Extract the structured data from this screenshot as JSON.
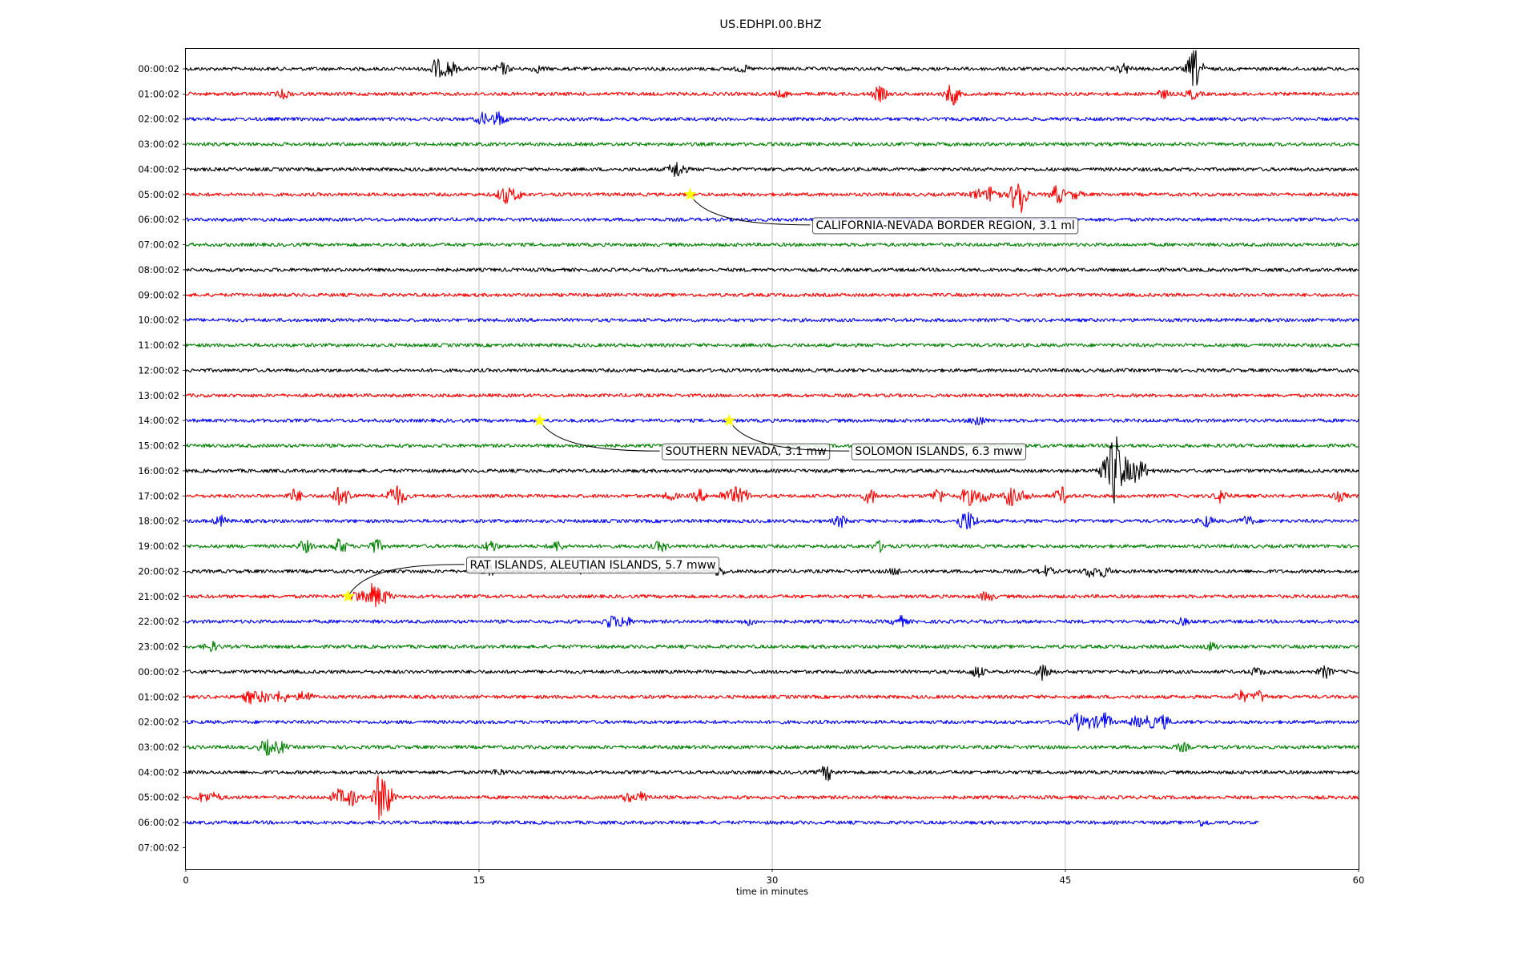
{
  "chart_data": {
    "type": "line",
    "title": "US.EDHPI.00.BHZ",
    "xlabel": "time in minutes",
    "ylabel": "",
    "xlim": [
      0,
      60
    ],
    "xticks": [
      0,
      15,
      30,
      45,
      60
    ],
    "xgrid": true,
    "trace_colors": [
      "#000000",
      "#ff0000",
      "#0000ff",
      "#008000"
    ],
    "row_labels": [
      "00:00:02",
      "01:00:02",
      "02:00:02",
      "03:00:02",
      "04:00:02",
      "05:00:02",
      "06:00:02",
      "07:00:02",
      "08:00:02",
      "09:00:02",
      "10:00:02",
      "11:00:02",
      "12:00:02",
      "13:00:02",
      "14:00:02",
      "15:00:02",
      "16:00:02",
      "17:00:02",
      "18:00:02",
      "19:00:02",
      "20:00:02",
      "21:00:02",
      "22:00:02",
      "23:00:02",
      "00:00:02",
      "01:00:02",
      "02:00:02",
      "03:00:02",
      "04:00:02",
      "05:00:02",
      "06:00:02",
      "07:00:02"
    ],
    "series": [
      {
        "row": 0,
        "color": "#000000",
        "start": 0,
        "end": 60,
        "bursts": [
          [
            12.8,
            1.0
          ],
          [
            13.5,
            0.9
          ],
          [
            16.2,
            0.6
          ],
          [
            18.0,
            0.3
          ],
          [
            28.5,
            0.3
          ],
          [
            48.0,
            0.5
          ],
          [
            51.5,
            1.0
          ],
          [
            51.7,
            1.3
          ]
        ]
      },
      {
        "row": 1,
        "color": "#ff0000",
        "start": 0,
        "end": 60,
        "bursts": [
          [
            5.0,
            0.4
          ],
          [
            30.5,
            0.3
          ],
          [
            35.5,
            0.8
          ],
          [
            39.2,
            1.2
          ],
          [
            50.0,
            0.4
          ],
          [
            51.5,
            0.5
          ]
        ]
      },
      {
        "row": 2,
        "color": "#0000ff",
        "start": 0,
        "end": 60,
        "bursts": [
          [
            15.2,
            0.6
          ],
          [
            16.0,
            0.8
          ]
        ]
      },
      {
        "row": 3,
        "color": "#008000",
        "start": 0,
        "end": 60,
        "bursts": []
      },
      {
        "row": 4,
        "color": "#000000",
        "start": 0,
        "end": 60,
        "bursts": [
          [
            25.0,
            0.6
          ],
          [
            25.3,
            0.5
          ]
        ]
      },
      {
        "row": 5,
        "color": "#ff0000",
        "start": 0,
        "end": 60,
        "bursts": [
          [
            16.3,
            0.9
          ],
          [
            16.9,
            0.5
          ],
          [
            40.5,
            0.5
          ],
          [
            41.3,
            1.1
          ],
          [
            42.6,
            3.2
          ],
          [
            44.6,
            1.0
          ],
          [
            45.5,
            0.4
          ]
        ]
      },
      {
        "row": 6,
        "color": "#0000ff",
        "start": 0,
        "end": 60,
        "bursts": []
      },
      {
        "row": 7,
        "color": "#008000",
        "start": 0,
        "end": 60,
        "bursts": []
      },
      {
        "row": 8,
        "color": "#000000",
        "start": 0,
        "end": 60,
        "bursts": []
      },
      {
        "row": 9,
        "color": "#ff0000",
        "start": 0,
        "end": 60,
        "bursts": []
      },
      {
        "row": 10,
        "color": "#0000ff",
        "start": 0,
        "end": 60,
        "bursts": []
      },
      {
        "row": 11,
        "color": "#008000",
        "start": 0,
        "end": 60,
        "bursts": []
      },
      {
        "row": 12,
        "color": "#000000",
        "start": 0,
        "end": 60,
        "bursts": []
      },
      {
        "row": 13,
        "color": "#ff0000",
        "start": 0,
        "end": 60,
        "bursts": []
      },
      {
        "row": 14,
        "color": "#0000ff",
        "start": 0,
        "end": 60,
        "bursts": [
          [
            40.5,
            0.6
          ]
        ]
      },
      {
        "row": 15,
        "color": "#008000",
        "start": 0,
        "end": 60,
        "bursts": []
      },
      {
        "row": 16,
        "color": "#000000",
        "start": 0,
        "end": 60,
        "bursts": [
          [
            46.9,
            0.8
          ],
          [
            47.5,
            4.0
          ],
          [
            48.0,
            1.3
          ],
          [
            48.6,
            1.0
          ],
          [
            49.0,
            0.6
          ]
        ]
      },
      {
        "row": 17,
        "color": "#ff0000",
        "start": 0,
        "end": 60,
        "bursts": [
          [
            5.6,
            0.7
          ],
          [
            7.8,
            0.8
          ],
          [
            8.3,
            0.6
          ],
          [
            10.6,
            0.9
          ],
          [
            11.0,
            0.6
          ],
          [
            24.8,
            0.4
          ],
          [
            26.3,
            0.6
          ],
          [
            27.5,
            0.4
          ],
          [
            28.1,
            0.8
          ],
          [
            28.6,
            0.5
          ],
          [
            35.0,
            0.8
          ],
          [
            38.5,
            0.8
          ],
          [
            40.0,
            1.0
          ],
          [
            40.8,
            0.8
          ],
          [
            42.2,
            1.1
          ],
          [
            43.0,
            0.5
          ],
          [
            44.8,
            0.9
          ],
          [
            53.0,
            0.7
          ],
          [
            59.0,
            0.5
          ]
        ]
      },
      {
        "row": 18,
        "color": "#0000ff",
        "start": 0,
        "end": 60,
        "bursts": [
          [
            1.8,
            0.5
          ],
          [
            33.5,
            0.6
          ],
          [
            39.8,
            0.9
          ],
          [
            40.2,
            0.6
          ],
          [
            52.2,
            0.6
          ],
          [
            54.3,
            0.5
          ]
        ]
      },
      {
        "row": 19,
        "color": "#008000",
        "start": 0,
        "end": 60,
        "bursts": [
          [
            6.1,
            0.6
          ],
          [
            7.9,
            0.8
          ],
          [
            9.7,
            0.7
          ],
          [
            15.6,
            0.6
          ],
          [
            19.0,
            0.5
          ],
          [
            24.3,
            0.5
          ],
          [
            35.5,
            0.5
          ]
        ]
      },
      {
        "row": 20,
        "color": "#000000",
        "start": 0,
        "end": 60,
        "bursts": [
          [
            15.5,
            0.6
          ],
          [
            20.5,
            0.4
          ],
          [
            27.3,
            0.4
          ],
          [
            36.3,
            0.3
          ],
          [
            44.0,
            0.5
          ],
          [
            46.3,
            0.6
          ],
          [
            47.0,
            0.5
          ]
        ]
      },
      {
        "row": 21,
        "color": "#ff0000",
        "start": 0,
        "end": 60,
        "bursts": [
          [
            8.8,
            0.6
          ],
          [
            9.6,
            1.4
          ],
          [
            10.2,
            0.6
          ],
          [
            41.0,
            0.5
          ]
        ]
      },
      {
        "row": 22,
        "color": "#0000ff",
        "start": 0,
        "end": 60,
        "bursts": [
          [
            21.7,
            0.6
          ],
          [
            22.4,
            0.7
          ],
          [
            28.8,
            0.3
          ],
          [
            36.5,
            0.6
          ],
          [
            51.0,
            0.3
          ]
        ]
      },
      {
        "row": 23,
        "color": "#008000",
        "start": 0,
        "end": 60,
        "bursts": [
          [
            1.3,
            0.5
          ],
          [
            52.5,
            0.4
          ]
        ]
      },
      {
        "row": 24,
        "color": "#000000",
        "start": 0,
        "end": 60,
        "bursts": [
          [
            40.5,
            0.6
          ],
          [
            43.9,
            0.9
          ],
          [
            54.8,
            0.4
          ],
          [
            58.3,
            0.6
          ]
        ]
      },
      {
        "row": 25,
        "color": "#ff0000",
        "start": 0,
        "end": 60,
        "bursts": [
          [
            3.3,
            0.7
          ],
          [
            4.0,
            0.6
          ],
          [
            4.9,
            0.6
          ],
          [
            6.1,
            0.7
          ],
          [
            54.0,
            0.6
          ],
          [
            54.9,
            0.6
          ]
        ]
      },
      {
        "row": 26,
        "color": "#0000ff",
        "start": 0,
        "end": 60,
        "bursts": [
          [
            45.6,
            0.9
          ],
          [
            46.3,
            0.6
          ],
          [
            47.0,
            1.0
          ],
          [
            48.6,
            0.5
          ],
          [
            49.3,
            0.6
          ],
          [
            50.0,
            0.7
          ]
        ]
      },
      {
        "row": 27,
        "color": "#008000",
        "start": 0,
        "end": 60,
        "bursts": [
          [
            4.1,
            0.8
          ],
          [
            4.8,
            0.6
          ],
          [
            51.0,
            0.4
          ]
        ]
      },
      {
        "row": 28,
        "color": "#000000",
        "start": 0,
        "end": 60,
        "bursts": [
          [
            16.0,
            0.3
          ],
          [
            32.8,
            0.8
          ]
        ]
      },
      {
        "row": 29,
        "color": "#ff0000",
        "start": 0,
        "end": 60,
        "bursts": [
          [
            0.9,
            0.5
          ],
          [
            1.5,
            0.4
          ],
          [
            7.8,
            0.8
          ],
          [
            8.5,
            0.9
          ],
          [
            10.0,
            3.0
          ],
          [
            10.4,
            0.8
          ],
          [
            22.6,
            0.4
          ],
          [
            23.4,
            0.6
          ]
        ]
      },
      {
        "row": 30,
        "color": "#0000ff",
        "start": 0,
        "end": 54.9,
        "bursts": [
          [
            52.0,
            0.3
          ]
        ]
      }
    ],
    "events": [
      {
        "label": "CALIFORNIA-NEVADA BORDER REGION, 3.1 ml",
        "row": 5,
        "x": 25.8
      },
      {
        "label": "SOUTHERN NEVADA, 3.1 mw",
        "row": 14,
        "x": 18.1
      },
      {
        "label": "SOLOMON ISLANDS, 6.3 mww",
        "row": 14,
        "x": 27.8
      },
      {
        "label": "RAT ISLANDS, ALEUTIAN ISLANDS, 5.7 mww",
        "row": 21,
        "x": 8.3
      }
    ]
  }
}
